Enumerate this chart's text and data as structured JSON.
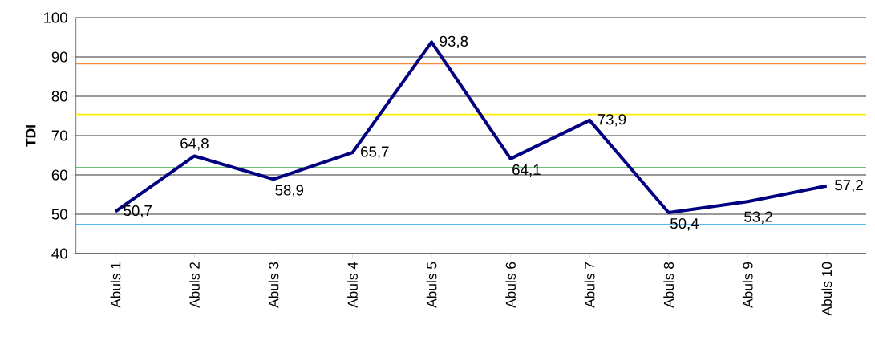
{
  "chart_data": {
    "type": "line",
    "ylabel": "TDI",
    "categories": [
      "Abuls 1",
      "Abuls 2",
      "Abuls 3",
      "Abuls 4",
      "Abuls 5",
      "Abuls 6",
      "Abuls 7",
      "Abuls 8",
      "Abuls 9",
      "Abuls 10"
    ],
    "series": [
      {
        "color": "#000080",
        "values": [
          50.7,
          64.8,
          58.9,
          65.7,
          93.8,
          64.1,
          73.9,
          50.4,
          53.2,
          57.2
        ],
        "value_labels": [
          "50,7",
          "64,8",
          "58,9",
          "65,7",
          "93,8",
          "64,1",
          "73,9",
          "50,4",
          "53,2",
          "57,2"
        ]
      }
    ],
    "ylim": [
      40,
      100
    ],
    "yticks": [
      40,
      50,
      60,
      70,
      80,
      90,
      100
    ],
    "grid": "y",
    "ref_lines": [
      {
        "axis": "y",
        "value": 88.3,
        "color": "#f58a3c"
      },
      {
        "axis": "y",
        "value": 75.4,
        "color": "#ffee00"
      },
      {
        "axis": "y",
        "value": 61.8,
        "color": "#33aa44"
      },
      {
        "axis": "y",
        "value": 47.3,
        "color": "#1ea0e6"
      }
    ]
  }
}
